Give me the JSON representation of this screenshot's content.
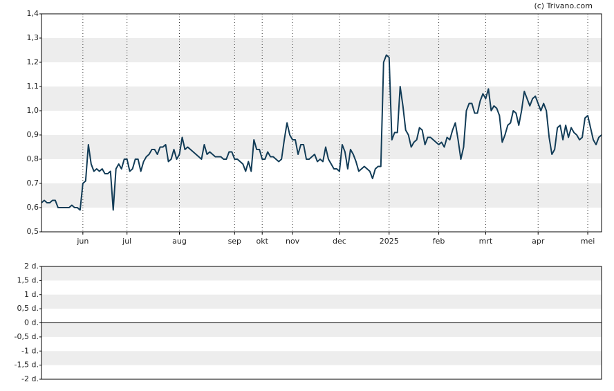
{
  "chart_data": [
    {
      "type": "line",
      "credit": "(c) Trivano.com",
      "categories": [
        null,
        null,
        null,
        null,
        null,
        null,
        null,
        null,
        null,
        null,
        null,
        null,
        null,
        null,
        null,
        "jun",
        null,
        null,
        null,
        null,
        null,
        null,
        null,
        null,
        null,
        null,
        null,
        null,
        null,
        null,
        null,
        "jul",
        null,
        null,
        null,
        null,
        null,
        null,
        null,
        null,
        null,
        null,
        null,
        null,
        null,
        null,
        null,
        null,
        null,
        null,
        "aug",
        null,
        null,
        null,
        null,
        null,
        null,
        null,
        null,
        null,
        null,
        null,
        null,
        null,
        null,
        null,
        null,
        null,
        null,
        null,
        "sep",
        null,
        null,
        null,
        null,
        null,
        null,
        null,
        null,
        null,
        "okt",
        null,
        null,
        null,
        null,
        null,
        null,
        null,
        null,
        null,
        null,
        "nov",
        null,
        null,
        null,
        null,
        null,
        null,
        null,
        null,
        null,
        null,
        null,
        null,
        null,
        null,
        null,
        null,
        "dec",
        null,
        null,
        null,
        null,
        null,
        null,
        null,
        null,
        null,
        null,
        null,
        null,
        null,
        null,
        null,
        null,
        null,
        "2025",
        null,
        null,
        null,
        null,
        null,
        null,
        null,
        null,
        null,
        null,
        null,
        null,
        null,
        null,
        null,
        null,
        null,
        "feb",
        null,
        null,
        null,
        null,
        null,
        null,
        null,
        null,
        null,
        null,
        null,
        null,
        null,
        null,
        null,
        null,
        "mrt",
        null,
        null,
        null,
        null,
        null,
        null,
        null,
        null,
        null,
        null,
        null,
        null,
        null,
        null,
        null,
        null,
        null,
        null,
        "apr",
        null,
        null,
        null,
        null,
        null,
        null,
        null,
        null,
        null,
        null,
        null,
        null,
        null,
        null,
        null,
        null,
        null,
        "mei",
        null,
        null,
        null,
        null,
        null
      ],
      "series": [
        {
          "color": "#123c57",
          "values": [
            0.62,
            0.63,
            0.62,
            0.62,
            0.63,
            0.63,
            0.6,
            0.6,
            0.6,
            0.6,
            0.6,
            0.61,
            0.6,
            0.6,
            0.59,
            0.7,
            0.71,
            0.86,
            0.78,
            0.75,
            0.76,
            0.75,
            0.76,
            0.74,
            0.74,
            0.75,
            0.59,
            0.76,
            0.78,
            0.76,
            0.8,
            0.8,
            0.75,
            0.76,
            0.8,
            0.8,
            0.75,
            0.79,
            0.81,
            0.82,
            0.84,
            0.84,
            0.82,
            0.85,
            0.85,
            0.86,
            0.79,
            0.8,
            0.84,
            0.8,
            0.82,
            0.89,
            0.84,
            0.85,
            0.84,
            0.83,
            0.82,
            0.81,
            0.8,
            0.86,
            0.82,
            0.83,
            0.82,
            0.81,
            0.81,
            0.81,
            0.8,
            0.8,
            0.83,
            0.83,
            0.8,
            0.8,
            0.79,
            0.78,
            0.75,
            0.79,
            0.75,
            0.88,
            0.84,
            0.84,
            0.8,
            0.8,
            0.83,
            0.81,
            0.81,
            0.8,
            0.79,
            0.8,
            0.88,
            0.95,
            0.9,
            0.88,
            0.88,
            0.82,
            0.86,
            0.86,
            0.8,
            0.8,
            0.81,
            0.82,
            0.79,
            0.8,
            0.79,
            0.85,
            0.8,
            0.78,
            0.76,
            0.76,
            0.75,
            0.86,
            0.83,
            0.76,
            0.84,
            0.82,
            0.79,
            0.75,
            0.76,
            0.77,
            0.76,
            0.75,
            0.72,
            0.76,
            0.77,
            0.77,
            1.2,
            1.23,
            1.22,
            0.88,
            0.91,
            0.91,
            1.1,
            1.02,
            0.92,
            0.9,
            0.85,
            0.87,
            0.88,
            0.93,
            0.92,
            0.86,
            0.89,
            0.89,
            0.88,
            0.87,
            0.86,
            0.87,
            0.85,
            0.89,
            0.88,
            0.92,
            0.95,
            0.88,
            0.8,
            0.85,
            1.0,
            1.03,
            1.03,
            0.99,
            0.99,
            1.04,
            1.07,
            1.05,
            1.09,
            1.0,
            1.02,
            1.01,
            0.98,
            0.87,
            0.9,
            0.94,
            0.95,
            1.0,
            0.99,
            0.94,
            1.0,
            1.08,
            1.05,
            1.02,
            1.05,
            1.06,
            1.03,
            1.0,
            1.03,
            1.0,
            0.89,
            0.82,
            0.84,
            0.93,
            0.94,
            0.88,
            0.94,
            0.89,
            0.93,
            0.91,
            0.9,
            0.88,
            0.89,
            0.97,
            0.98,
            0.93,
            0.88,
            0.86,
            0.89,
            0.9
          ]
        }
      ],
      "ylim": [
        0.5,
        1.4
      ],
      "yticks": [
        {
          "value": 0.5,
          "label": "0,5"
        },
        {
          "value": 0.6,
          "label": "0,6"
        },
        {
          "value": 0.7,
          "label": "0,7"
        },
        {
          "value": 0.8,
          "label": "0,8"
        },
        {
          "value": 0.9,
          "label": "0,9"
        },
        {
          "value": 1.0,
          "label": "1,0"
        },
        {
          "value": 1.1,
          "label": "1,1"
        },
        {
          "value": 1.2,
          "label": "1,2"
        },
        {
          "value": 1.3,
          "label": "1,3"
        },
        {
          "value": 1.4,
          "label": "1,4"
        }
      ]
    },
    {
      "type": "bar",
      "ylim": [
        -2,
        2
      ],
      "yticks": [
        {
          "value": -2,
          "label": "-2 d."
        },
        {
          "value": -1.5,
          "label": "-1,5 d."
        },
        {
          "value": -1,
          "label": "-1 d."
        },
        {
          "value": -0.5,
          "label": "-0,5 d."
        },
        {
          "value": 0,
          "label": "0 d."
        },
        {
          "value": 0.5,
          "label": "0,5 d."
        },
        {
          "value": 1,
          "label": "1 d."
        },
        {
          "value": 1.5,
          "label": "1,5 d."
        },
        {
          "value": 2,
          "label": "2 d."
        }
      ]
    }
  ]
}
